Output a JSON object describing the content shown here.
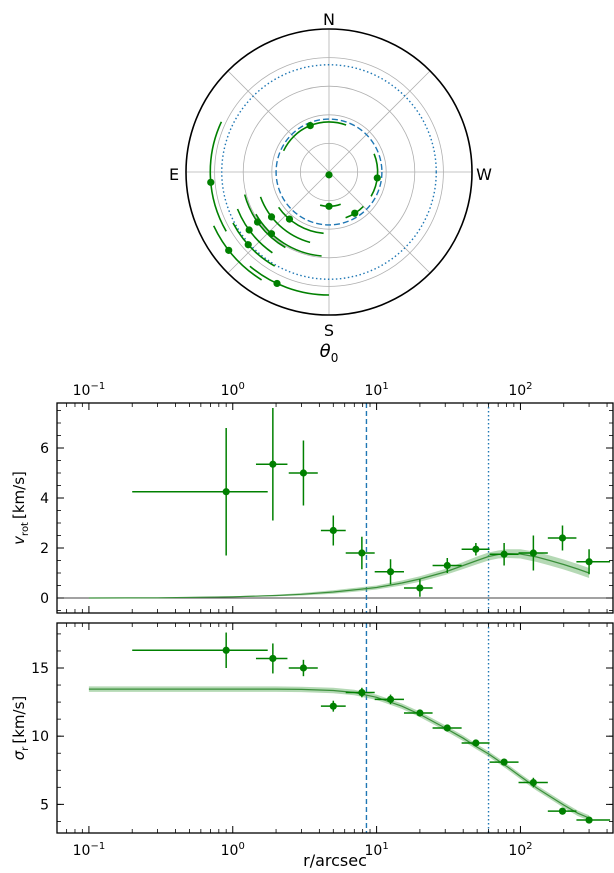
{
  "chart_data": [
    {
      "type": "polar",
      "xlabel": "θ",
      "xlabel_sub": "0",
      "compass": {
        "north": "N",
        "south": "S",
        "east": "E",
        "west": "W"
      },
      "r_grid": [
        0.2,
        0.4,
        0.6,
        0.8
      ],
      "angle_grid_deg": [
        0,
        45,
        90,
        135,
        180,
        225,
        270,
        315
      ],
      "reference_circles": [
        {
          "r": 0.37,
          "style": "dashed",
          "color": "#1f77b4"
        },
        {
          "r": 0.75,
          "style": "dotted",
          "color": "#1f77b4"
        }
      ],
      "series": [
        {
          "color": "#008000",
          "points": [
            {
              "r": 0.02,
              "pa": 180,
              "pa_lo": 170,
              "pa_hi": 200
            },
            {
              "r": 0.24,
              "pa": 180,
              "pa_lo": 165,
              "pa_hi": 200
            },
            {
              "r": 0.34,
              "pa": 212,
              "pa_lo": 200,
              "pa_hi": 225
            },
            {
              "r": 0.34,
              "pa": 263,
              "pa_lo": 240,
              "pa_hi": 292
            },
            {
              "r": 0.35,
              "pa": 22,
              "pa_lo": -20,
              "pa_hi": 65
            },
            {
              "r": 0.43,
              "pa": 140,
              "pa_lo": 125,
              "pa_hi": 175
            },
            {
              "r": 0.51,
              "pa": 128,
              "pa_lo": 110,
              "pa_hi": 165
            },
            {
              "r": 0.59,
              "pa": 137,
              "pa_lo": 120,
              "pa_hi": 175
            },
            {
              "r": 0.61,
              "pa": 125,
              "pa_lo": 105,
              "pa_hi": 150
            },
            {
              "r": 0.69,
              "pa": 126,
              "pa_lo": 112,
              "pa_hi": 145
            },
            {
              "r": 0.76,
              "pa": 132,
              "pa_lo": 118,
              "pa_hi": 150
            },
            {
              "r": 0.83,
              "pa": 95,
              "pa_lo": 65,
              "pa_hi": 120
            },
            {
              "r": 0.89,
              "pa": 128,
              "pa_lo": 115,
              "pa_hi": 148
            },
            {
              "r": 0.86,
              "pa": 155,
              "pa_lo": 140,
              "pa_hi": 180
            }
          ]
        }
      ]
    },
    {
      "type": "line",
      "xscale": "log",
      "xlim": [
        0.06,
        440
      ],
      "ylim": [
        -0.6,
        7.8
      ],
      "ylabel": "v",
      "ylabel_sub": "rot",
      "ylabel_unit": "[km/s]",
      "xlabel": "",
      "yticks": [
        0,
        2,
        4,
        6
      ],
      "xticks": [
        0.1,
        1,
        10,
        100
      ],
      "xtick_labels": [
        {
          "base": "10",
          "exp": "−1"
        },
        {
          "base": "10",
          "exp": "0"
        },
        {
          "base": "10",
          "exp": "1"
        },
        {
          "base": "10",
          "exp": "2"
        }
      ],
      "top_axis_labels": true,
      "zero_line": 0,
      "vlines": [
        {
          "x": 8.5,
          "style": "dashed",
          "color": "#1f77b4"
        },
        {
          "x": 60,
          "style": "dotted",
          "color": "#1f77b4"
        }
      ],
      "model": {
        "color": "#5aaa5a",
        "x": [
          0.1,
          0.3,
          1,
          2,
          3,
          5,
          8,
          10,
          15,
          20,
          30,
          40,
          50,
          60,
          70,
          80,
          100,
          130,
          160,
          200,
          250,
          300
        ],
        "y": [
          0,
          0.01,
          0.05,
          0.1,
          0.15,
          0.24,
          0.36,
          0.42,
          0.6,
          0.76,
          1.04,
          1.3,
          1.5,
          1.66,
          1.74,
          1.78,
          1.76,
          1.64,
          1.5,
          1.34,
          1.16,
          1.0
        ],
        "y_lo": [
          0,
          0.0,
          0.03,
          0.07,
          0.1,
          0.17,
          0.28,
          0.34,
          0.5,
          0.65,
          0.92,
          1.16,
          1.35,
          1.5,
          1.58,
          1.6,
          1.58,
          1.44,
          1.3,
          1.14,
          0.96,
          0.8
        ],
        "y_hi": [
          0.01,
          0.02,
          0.07,
          0.13,
          0.2,
          0.31,
          0.44,
          0.5,
          0.7,
          0.87,
          1.16,
          1.44,
          1.66,
          1.82,
          1.9,
          1.95,
          1.95,
          1.84,
          1.7,
          1.54,
          1.36,
          1.2
        ]
      },
      "points": {
        "color": "#008000",
        "x": [
          0.9,
          1.9,
          3.1,
          5.0,
          7.9,
          12.5,
          20,
          31,
          49,
          77,
          123,
          196,
          300
        ],
        "x_lo": [
          0.2,
          1.45,
          2.45,
          4.1,
          6.1,
          9.7,
          15.5,
          24.5,
          39,
          61,
          97,
          155,
          245
        ],
        "x_hi": [
          1.75,
          2.4,
          3.9,
          6.1,
          9.7,
          15.5,
          24.5,
          39,
          61,
          97,
          155,
          245,
          420
        ],
        "y": [
          4.25,
          5.35,
          5.0,
          2.7,
          1.8,
          1.05,
          0.4,
          1.3,
          1.95,
          1.75,
          1.8,
          2.4,
          1.45
        ],
        "y_err": [
          2.55,
          2.25,
          1.3,
          0.6,
          0.65,
          0.5,
          0.35,
          0.3,
          0.25,
          0.45,
          0.7,
          0.5,
          0.5
        ]
      }
    },
    {
      "type": "line",
      "xscale": "log",
      "xlim": [
        0.06,
        440
      ],
      "ylim": [
        2.9,
        18.3
      ],
      "ylabel": "σ",
      "ylabel_sub": "r",
      "ylabel_unit": "[km/s]",
      "xlabel": "r/arcsec",
      "yticks": [
        5,
        10,
        15
      ],
      "xticks": [
        0.1,
        1,
        10,
        100
      ],
      "xtick_labels": [
        {
          "base": "10",
          "exp": "−1"
        },
        {
          "base": "10",
          "exp": "0"
        },
        {
          "base": "10",
          "exp": "1"
        },
        {
          "base": "10",
          "exp": "2"
        }
      ],
      "vlines": [
        {
          "x": 8.5,
          "style": "dashed",
          "color": "#1f77b4"
        },
        {
          "x": 60,
          "style": "dotted",
          "color": "#1f77b4"
        }
      ],
      "model": {
        "color": "#5aaa5a",
        "x": [
          0.1,
          0.3,
          1,
          2,
          3,
          5,
          7,
          10,
          15,
          20,
          30,
          40,
          50,
          60,
          80,
          100,
          130,
          160,
          200,
          250,
          300
        ],
        "y": [
          13.45,
          13.45,
          13.45,
          13.45,
          13.43,
          13.35,
          13.2,
          12.85,
          12.2,
          11.6,
          10.6,
          9.85,
          9.2,
          8.7,
          7.8,
          7.05,
          6.2,
          5.6,
          4.95,
          4.35,
          4.0
        ],
        "y_lo": [
          13.25,
          13.25,
          13.25,
          13.25,
          13.23,
          13.15,
          13.0,
          12.65,
          12.0,
          11.4,
          10.4,
          9.65,
          9.0,
          8.5,
          7.6,
          6.85,
          6.0,
          5.4,
          4.75,
          4.15,
          3.8
        ],
        "y_hi": [
          13.65,
          13.65,
          13.65,
          13.65,
          13.63,
          13.55,
          13.4,
          13.05,
          12.4,
          11.8,
          10.8,
          10.05,
          9.4,
          8.9,
          8.0,
          7.25,
          6.4,
          5.8,
          5.15,
          4.55,
          4.2
        ]
      },
      "points": {
        "color": "#008000",
        "x": [
          0.9,
          1.9,
          3.1,
          5.0,
          7.9,
          12.5,
          20,
          31,
          49,
          77,
          123,
          196,
          300
        ],
        "x_lo": [
          0.2,
          1.45,
          2.45,
          4.1,
          6.1,
          9.7,
          15.5,
          24.5,
          39,
          61,
          97,
          155,
          245
        ],
        "x_hi": [
          1.75,
          2.4,
          3.9,
          6.1,
          9.7,
          15.5,
          24.5,
          39,
          61,
          97,
          155,
          245,
          420
        ],
        "y": [
          16.3,
          15.7,
          15.0,
          12.2,
          13.2,
          12.7,
          11.7,
          10.6,
          9.5,
          8.1,
          6.6,
          4.5,
          3.85
        ],
        "y_err": [
          1.3,
          1.1,
          0.6,
          0.4,
          0.35,
          0.35,
          0.25,
          0.25,
          0.25,
          0.25,
          0.35,
          0.25,
          0.25
        ]
      }
    }
  ]
}
